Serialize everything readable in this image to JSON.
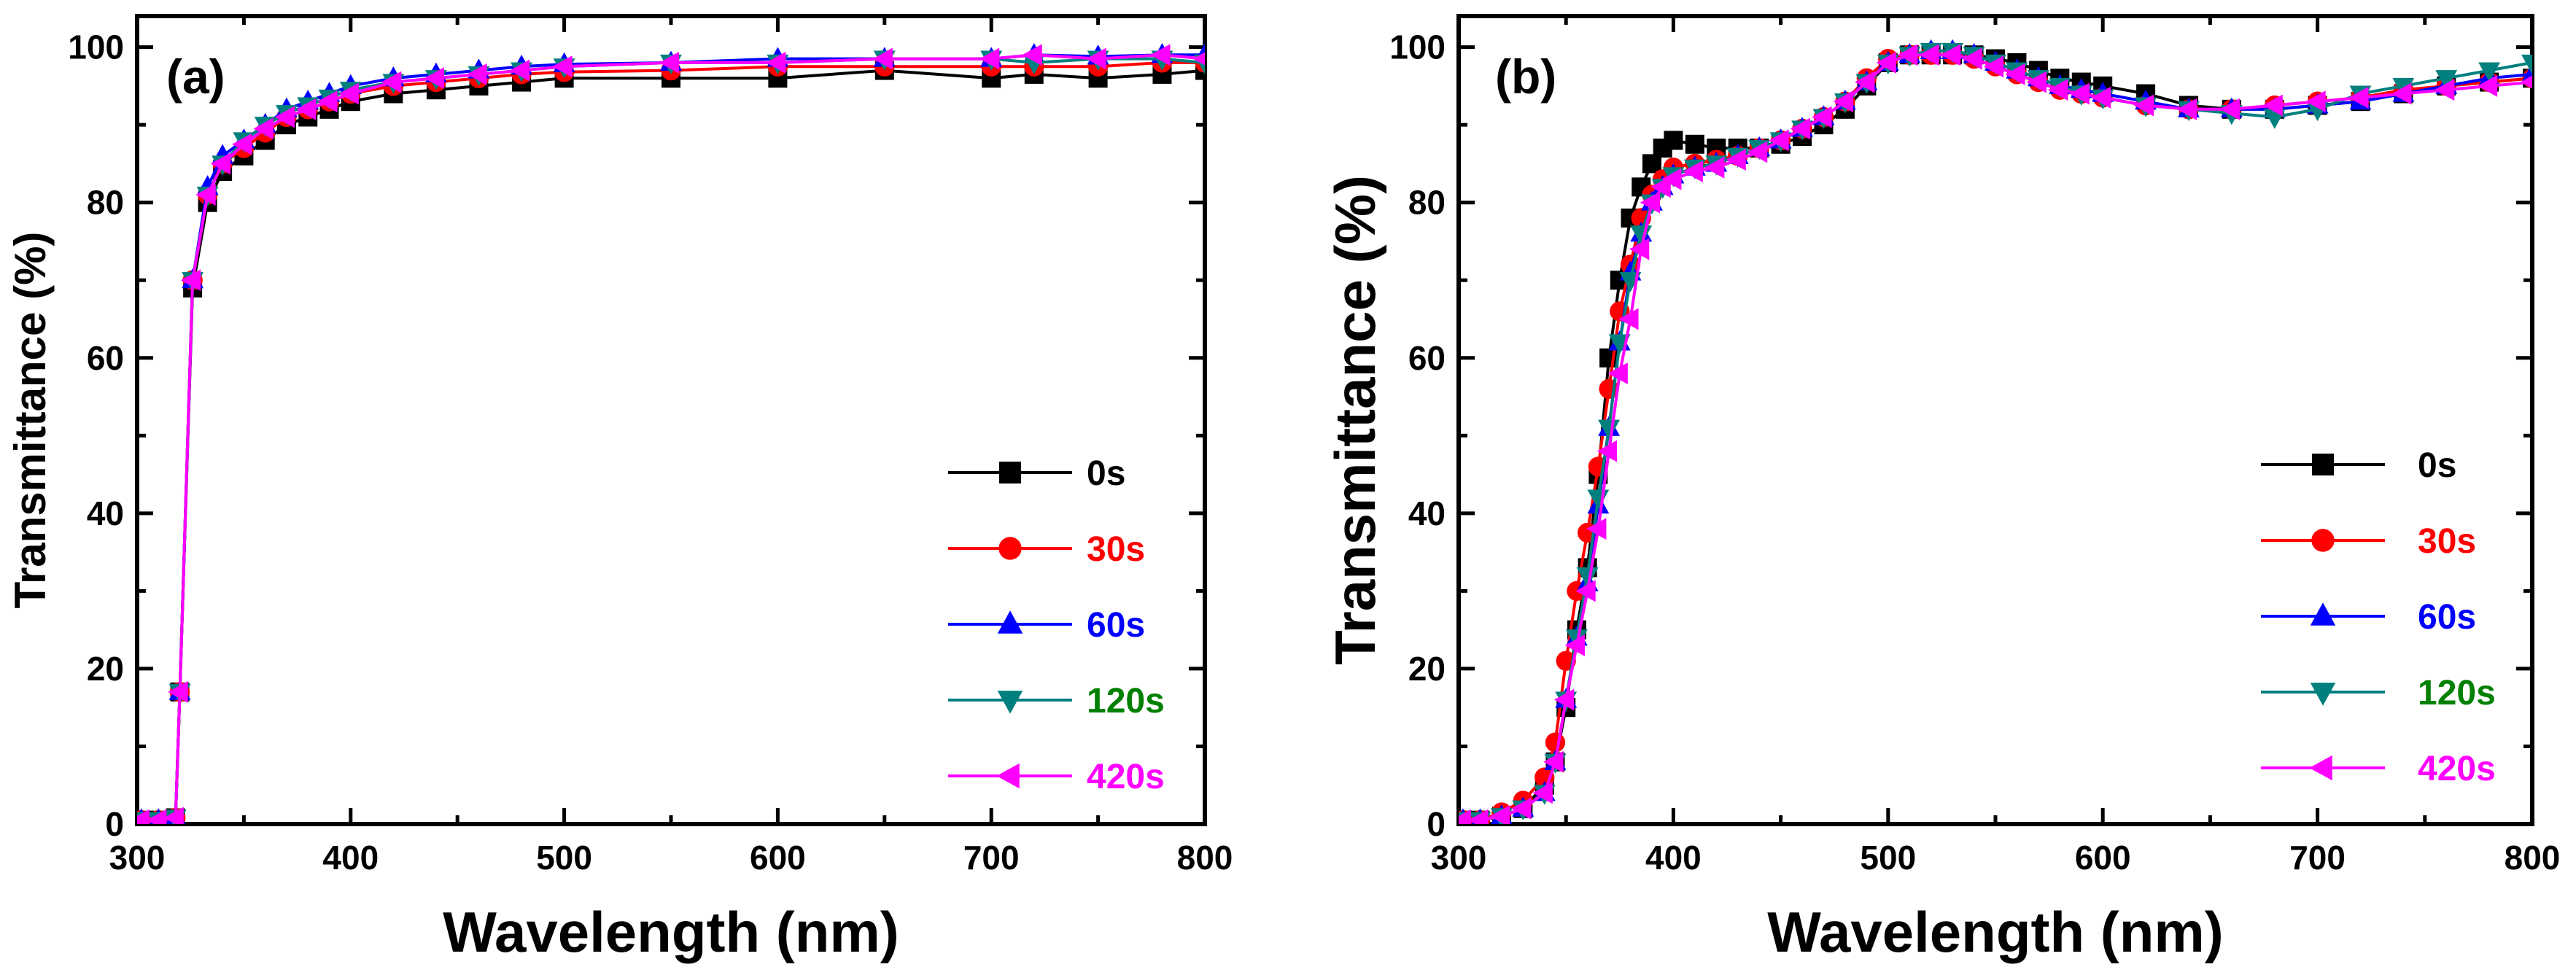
{
  "chart_data": [
    {
      "type": "line",
      "panel_label": "(a)",
      "title": "",
      "xlabel": "Wavelength (nm)",
      "ylabel": "Transmittance (%)",
      "xlim": [
        300,
        800
      ],
      "ylim": [
        0,
        104
      ],
      "x_ticks": [
        300,
        400,
        500,
        600,
        700,
        800
      ],
      "y_ticks": [
        0,
        20,
        40,
        60,
        80,
        100
      ],
      "x_tick_labels": [
        "300",
        "400",
        "500",
        "600",
        "700",
        "800"
      ],
      "y_tick_labels": [
        "0",
        "20",
        "40",
        "60",
        "80",
        "100"
      ],
      "grid": false,
      "legend_position": "right",
      "series": [
        {
          "name": "0s",
          "color": "#000000",
          "marker": "square",
          "x": [
            302,
            310,
            318,
            320,
            326,
            333,
            340,
            350,
            360,
            370,
            380,
            390,
            400,
            420,
            440,
            460,
            480,
            500,
            550,
            600,
            650,
            700,
            720,
            750,
            780,
            800
          ],
          "y": [
            0.5,
            0.5,
            0.8,
            17,
            69,
            80,
            84,
            86,
            88,
            90,
            91,
            92,
            93,
            94,
            94.5,
            95,
            95.5,
            96,
            96,
            96,
            97,
            96,
            96.5,
            96,
            96.5,
            97
          ]
        },
        {
          "name": "30s",
          "color": "#ff0000",
          "marker": "circle",
          "x": [
            302,
            310,
            318,
            320,
            326,
            333,
            340,
            350,
            360,
            370,
            380,
            390,
            400,
            420,
            440,
            460,
            480,
            500,
            550,
            600,
            650,
            700,
            720,
            750,
            780,
            800
          ],
          "y": [
            0.5,
            0.5,
            0.8,
            17,
            70,
            81,
            85,
            87,
            89,
            91,
            92,
            93,
            94,
            95,
            95.5,
            96,
            96.5,
            96.8,
            97,
            97.5,
            97.5,
            97.5,
            97.5,
            97.5,
            98,
            98
          ]
        },
        {
          "name": "60s",
          "color": "#0000ff",
          "marker": "triangle-up",
          "x": [
            302,
            310,
            318,
            320,
            326,
            333,
            340,
            350,
            360,
            370,
            380,
            390,
            400,
            420,
            440,
            460,
            480,
            500,
            550,
            600,
            650,
            700,
            720,
            750,
            780,
            800
          ],
          "y": [
            0.5,
            0.5,
            0.8,
            17,
            70,
            82,
            86,
            88,
            90,
            92,
            93,
            94,
            95,
            96,
            96.5,
            97,
            97.5,
            97.8,
            98,
            98.5,
            98.5,
            98.5,
            99,
            98.8,
            99,
            99
          ]
        },
        {
          "name": "120s",
          "color": "#007f7f",
          "marker": "triangle-down",
          "x": [
            302,
            310,
            318,
            320,
            326,
            333,
            340,
            350,
            360,
            370,
            380,
            390,
            400,
            420,
            440,
            460,
            480,
            500,
            550,
            600,
            650,
            700,
            720,
            750,
            780,
            800
          ],
          "y": [
            0.5,
            0.5,
            0.8,
            17,
            70,
            81,
            85,
            88,
            90,
            91.5,
            92.5,
            93.5,
            94.5,
            95.5,
            96,
            96.5,
            97,
            97.5,
            98,
            98,
            98.5,
            98.5,
            98,
            98.5,
            98.5,
            98
          ]
        },
        {
          "name": "420s",
          "color": "#ff00ff",
          "marker": "triangle-left",
          "x": [
            302,
            310,
            318,
            320,
            326,
            333,
            340,
            350,
            360,
            370,
            380,
            390,
            400,
            420,
            440,
            460,
            480,
            500,
            550,
            600,
            650,
            700,
            720,
            750,
            780,
            800
          ],
          "y": [
            0.5,
            0.5,
            0.8,
            17,
            70,
            81,
            85,
            87.5,
            89.5,
            91,
            92,
            93,
            94,
            95.5,
            96,
            96.5,
            97,
            97.5,
            98,
            98,
            98.5,
            98.5,
            99,
            98.5,
            99,
            98.5
          ]
        }
      ]
    },
    {
      "type": "line",
      "panel_label": "(b)",
      "title": "",
      "xlabel": "Wavelength (nm)",
      "ylabel": "Transmittance (%)",
      "xlim": [
        300,
        800
      ],
      "ylim": [
        0,
        104
      ],
      "x_ticks": [
        300,
        400,
        500,
        600,
        700,
        800
      ],
      "y_ticks": [
        0,
        20,
        40,
        60,
        80,
        100
      ],
      "x_tick_labels": [
        "300",
        "400",
        "500",
        "600",
        "700",
        "800"
      ],
      "y_tick_labels": [
        "0",
        "20",
        "40",
        "60",
        "80",
        "100"
      ],
      "grid": false,
      "legend_position": "right",
      "series": [
        {
          "name": "0s",
          "color": "#000000",
          "marker": "square",
          "x": [
            302,
            310,
            320,
            330,
            340,
            345,
            350,
            355,
            360,
            365,
            370,
            375,
            380,
            385,
            390,
            395,
            400,
            410,
            420,
            430,
            440,
            450,
            460,
            470,
            480,
            490,
            500,
            510,
            520,
            530,
            540,
            550,
            560,
            570,
            580,
            590,
            600,
            620,
            640,
            660,
            680,
            700,
            720,
            740,
            760,
            780,
            800
          ],
          "y": [
            0.5,
            0.5,
            1,
            2,
            5,
            8,
            15,
            25,
            33,
            45,
            60,
            70,
            78,
            82,
            85,
            87,
            88,
            87.5,
            87,
            87,
            87,
            87.5,
            88.5,
            90,
            92,
            95,
            98,
            99,
            99,
            99,
            99,
            98.5,
            98,
            97,
            96,
            95.5,
            95,
            94,
            92.5,
            92,
            92,
            92.5,
            93,
            94,
            95,
            95.5,
            96
          ]
        },
        {
          "name": "30s",
          "color": "#ff0000",
          "marker": "circle",
          "x": [
            302,
            310,
            320,
            330,
            340,
            345,
            350,
            355,
            360,
            365,
            370,
            375,
            380,
            385,
            390,
            395,
            400,
            410,
            420,
            430,
            440,
            450,
            460,
            470,
            480,
            490,
            500,
            510,
            520,
            530,
            540,
            550,
            560,
            570,
            580,
            590,
            600,
            620,
            640,
            660,
            680,
            700,
            720,
            740,
            760,
            780,
            800
          ],
          "y": [
            0.5,
            0.5,
            1.5,
            3,
            6,
            10.5,
            21,
            30,
            37.5,
            46,
            56,
            66,
            72,
            78,
            81,
            83,
            84.5,
            85,
            85.5,
            86,
            87,
            88,
            89.5,
            91,
            93,
            96,
            98.5,
            99,
            99,
            99,
            98.5,
            97.5,
            96.5,
            95.5,
            94.5,
            94,
            93.5,
            92.5,
            92,
            92,
            92.5,
            93,
            93.5,
            94.5,
            95,
            95.5,
            96
          ]
        },
        {
          "name": "60s",
          "color": "#0000ff",
          "marker": "triangle-up",
          "x": [
            302,
            310,
            320,
            330,
            340,
            345,
            350,
            355,
            360,
            365,
            370,
            375,
            380,
            385,
            390,
            395,
            400,
            410,
            420,
            430,
            440,
            450,
            460,
            470,
            480,
            490,
            500,
            510,
            520,
            530,
            540,
            550,
            560,
            570,
            580,
            590,
            600,
            620,
            640,
            660,
            680,
            700,
            720,
            740,
            760,
            780,
            800
          ],
          "y": [
            0.5,
            0.5,
            1,
            2,
            4,
            8,
            16,
            24,
            31,
            41,
            51,
            62,
            71,
            76,
            80,
            82,
            83.5,
            84.5,
            85,
            86,
            87,
            88,
            89.5,
            91,
            93,
            95.5,
            98,
            99,
            99.5,
            99.5,
            99,
            98,
            97,
            96,
            95,
            94.5,
            94,
            93,
            92,
            92,
            92,
            92.5,
            93,
            94,
            95,
            96,
            96.5
          ]
        },
        {
          "name": "120s",
          "color": "#007f7f",
          "marker": "triangle-down",
          "x": [
            302,
            310,
            320,
            330,
            340,
            345,
            350,
            355,
            360,
            365,
            370,
            375,
            380,
            385,
            390,
            395,
            400,
            410,
            420,
            430,
            440,
            450,
            460,
            470,
            480,
            490,
            500,
            510,
            520,
            530,
            540,
            550,
            560,
            570,
            580,
            590,
            600,
            620,
            640,
            660,
            680,
            700,
            720,
            740,
            760,
            780,
            800
          ],
          "y": [
            0.5,
            0.5,
            1,
            2,
            4,
            8,
            16,
            24,
            32,
            42,
            51,
            62,
            70,
            76,
            80,
            82,
            83.5,
            84.5,
            85,
            86,
            87,
            88,
            89.5,
            91,
            93,
            95.5,
            98,
            99,
            99.5,
            99.5,
            99,
            98,
            97,
            96,
            95,
            94,
            93.5,
            92.5,
            92,
            91.5,
            91,
            92,
            94,
            95,
            96,
            97,
            98
          ]
        },
        {
          "name": "420s",
          "color": "#ff00ff",
          "marker": "triangle-left",
          "x": [
            302,
            310,
            320,
            330,
            340,
            345,
            350,
            355,
            360,
            365,
            370,
            375,
            380,
            385,
            390,
            395,
            400,
            410,
            420,
            430,
            440,
            450,
            460,
            470,
            480,
            490,
            500,
            510,
            520,
            530,
            540,
            550,
            560,
            570,
            580,
            590,
            600,
            620,
            640,
            660,
            680,
            700,
            720,
            740,
            760,
            780,
            800
          ],
          "y": [
            0.5,
            0.5,
            1,
            2,
            4,
            8,
            16,
            23,
            30,
            38,
            48,
            58,
            65,
            74,
            80,
            82,
            83,
            84,
            84.5,
            85.5,
            86.5,
            88,
            89.5,
            91,
            93,
            95.5,
            98,
            99,
            99,
            99,
            98.5,
            97.5,
            96.5,
            95.5,
            94.5,
            94,
            93.5,
            92.5,
            92,
            92,
            92.5,
            93,
            93.5,
            94,
            94.5,
            95,
            95.5
          ]
        }
      ]
    }
  ]
}
